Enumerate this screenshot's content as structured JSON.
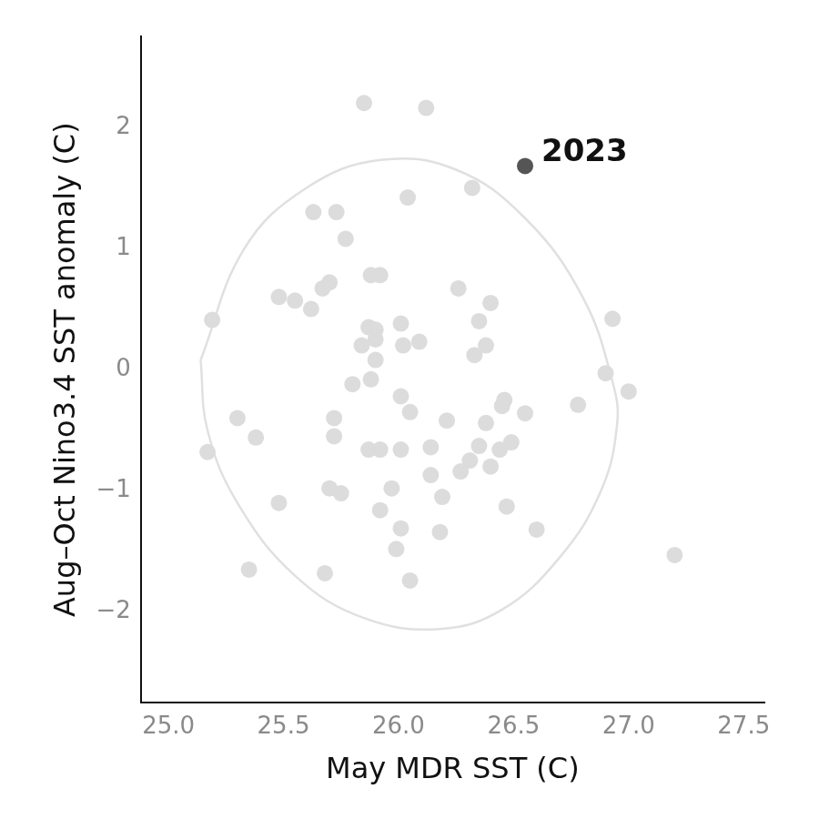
{
  "chart_data": {
    "type": "scatter",
    "x_label": "May MDR SST (C)",
    "y_label": "Aug–Oct Nino3.4 SST anomaly (C)",
    "xlim": [
      24.88,
      27.59
    ],
    "ylim": [
      -2.75,
      2.75
    ],
    "xticks": [
      {
        "value": 25,
        "label": "25.0"
      },
      25.5,
      {
        "value": 26,
        "label": "26.0"
      },
      26.5,
      {
        "value": 27,
        "label": "27.0"
      },
      27.5
    ],
    "yticks": [
      {
        "value": -2,
        "label": "−2"
      },
      {
        "value": -1,
        "label": "−1"
      },
      0,
      1,
      2
    ],
    "grid": false,
    "series": [
      {
        "type": "line",
        "marker": "none",
        "color": "#e0e0e0",
        "x": [
          25.14,
          25.33,
          25.6,
          25.92,
          26.25,
          26.55,
          26.8,
          26.93,
          26.95,
          26.88,
          26.7,
          26.45,
          26.18,
          25.85,
          25.55,
          25.3,
          25.17,
          25.14
        ],
        "values": [
          0.08,
          1.0,
          1.5,
          1.73,
          1.65,
          1.25,
          0.6,
          -0.1,
          -0.45,
          -1.0,
          -1.55,
          -1.98,
          -2.14,
          -2.05,
          -1.7,
          -1.1,
          -0.5,
          0.08
        ]
      },
      {
        "type": "scatter",
        "marker": "circle",
        "color": "#dcdcdc",
        "x": [
          25.85,
          26.12,
          26.32,
          26.04,
          25.63,
          25.73,
          25.77,
          25.67,
          25.7,
          25.48,
          25.55,
          25.62,
          25.19,
          25.88,
          25.92,
          26.26,
          26.4,
          26.35,
          26.01,
          25.87,
          25.9,
          25.84,
          25.9,
          26.02,
          26.09,
          26.38,
          26.33,
          25.9,
          26.93,
          26.9,
          27.0,
          25.8,
          25.88,
          26.01,
          26.05,
          25.3,
          25.38,
          25.72,
          25.72,
          26.21,
          26.38,
          26.45,
          26.46,
          26.55,
          26.78,
          25.17,
          25.87,
          25.92,
          26.01,
          26.14,
          26.35,
          26.44,
          26.49,
          26.4,
          26.31,
          26.27,
          26.14,
          25.7,
          25.75,
          25.97,
          26.19,
          25.48,
          25.92,
          26.01,
          26.18,
          26.47,
          26.6,
          25.99,
          25.35,
          25.68,
          26.05,
          27.2
        ],
        "values": [
          2.2,
          2.16,
          1.5,
          1.42,
          1.3,
          1.3,
          1.08,
          0.67,
          0.72,
          0.6,
          0.57,
          0.5,
          0.41,
          0.78,
          0.78,
          0.67,
          0.55,
          0.4,
          0.38,
          0.35,
          0.33,
          0.2,
          0.25,
          0.2,
          0.23,
          0.2,
          0.12,
          0.08,
          0.42,
          -0.03,
          -0.18,
          -0.12,
          -0.08,
          -0.22,
          -0.35,
          -0.4,
          -0.56,
          -0.4,
          -0.55,
          -0.42,
          -0.44,
          -0.3,
          -0.25,
          -0.36,
          -0.29,
          -0.68,
          -0.66,
          -0.66,
          -0.66,
          -0.64,
          -0.63,
          -0.66,
          -0.6,
          -0.8,
          -0.75,
          -0.84,
          -0.87,
          -0.98,
          -1.02,
          -0.98,
          -1.05,
          -1.1,
          -1.16,
          -1.31,
          -1.34,
          -1.13,
          -1.32,
          -1.48,
          -1.65,
          -1.68,
          -1.74,
          -1.53
        ]
      },
      {
        "type": "scatter",
        "marker": "circle",
        "color": "#555555",
        "x": [
          26.55
        ],
        "values": [
          1.68
        ]
      }
    ],
    "annotations": [
      {
        "text": "2023",
        "x": 26.55,
        "y": 1.68
      }
    ]
  }
}
